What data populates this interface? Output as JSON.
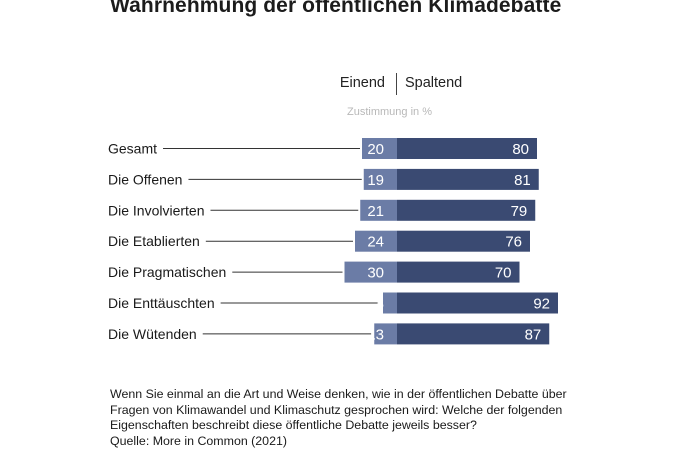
{
  "title": "Wahrnehmung der öffentlichen Klimadebatte",
  "legend": {
    "left": "Einend",
    "right": "Spaltend"
  },
  "unit_label": "Zustimmung in %",
  "colors": {
    "einend": "#6b7ca6",
    "spaltend": "#3a4a72",
    "leader": "#333333"
  },
  "chart_data": {
    "type": "bar",
    "orientation": "horizontal-diverging",
    "title": "Wahrnehmung der öffentlichen Klimadebatte",
    "categories": [
      "Gesamt",
      "Die Offenen",
      "Die Involvierten",
      "Die Etablierten",
      "Die Pragmatischen",
      "Die Enttäuschten",
      "Die Wütenden"
    ],
    "series": [
      {
        "name": "Einend",
        "values": [
          20,
          19,
          21,
          24,
          30,
          8,
          13
        ]
      },
      {
        "name": "Spaltend",
        "values": [
          80,
          81,
          79,
          76,
          70,
          92,
          87
        ]
      }
    ],
    "xlabel": "Zustimmung in %",
    "xlim": [
      0,
      100
    ]
  },
  "footnote": {
    "question": "Wenn Sie einmal an die Art und Weise denken, wie in der öffentlichen Debatte über Fragen von Klimawandel und Klimaschutz gesprochen wird: Welche der folgenden Eigenschaften beschreibt diese öffentliche Debatte jeweils besser?",
    "source": "Quelle: More in Common (2021)"
  }
}
